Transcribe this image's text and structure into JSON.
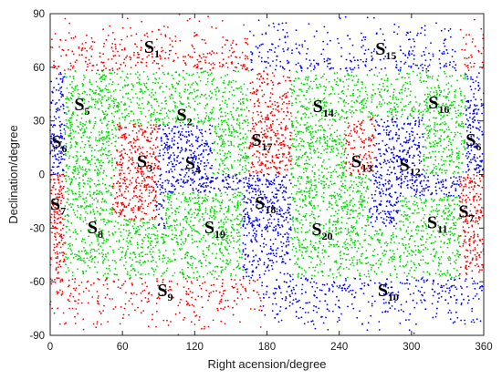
{
  "chart_data": {
    "type": "scatter",
    "title": "",
    "xlabel": "Right acension/degree",
    "ylabel": "Declination/degree",
    "xlim": [
      0,
      360
    ],
    "ylim": [
      -90,
      90
    ],
    "xticks": [
      0,
      60,
      120,
      180,
      240,
      300,
      360
    ],
    "yticks": [
      -90,
      -60,
      -30,
      0,
      30,
      60,
      90
    ],
    "grid": false,
    "colors": {
      "red": "#ff0000",
      "green": "#00dd00",
      "blue": "#0000ff"
    },
    "point_count": 9000,
    "regions": [
      {
        "name": "S",
        "sub": "1",
        "x": 78,
        "y": 68,
        "color": "red"
      },
      {
        "name": "S",
        "sub": "2",
        "x": 105,
        "y": 30,
        "color": "green"
      },
      {
        "name": "S",
        "sub": "3",
        "x": 72,
        "y": 4,
        "color": "red"
      },
      {
        "name": "S",
        "sub": "4",
        "x": 112,
        "y": 3,
        "color": "blue"
      },
      {
        "name": "S",
        "sub": "5",
        "x": 20,
        "y": 36,
        "color": "green"
      },
      {
        "name": "S",
        "sub": "6",
        "x": 1,
        "y": 15,
        "color": "blue"
      },
      {
        "name": "S",
        "sub": "6",
        "x": 358,
        "y": 16,
        "color": "blue"
      },
      {
        "name": "S",
        "sub": "7",
        "x": 0,
        "y": -20,
        "color": "red"
      },
      {
        "name": "S",
        "sub": "7",
        "x": 352,
        "y": -24,
        "color": "red"
      },
      {
        "name": "S",
        "sub": "8",
        "x": 31,
        "y": -33,
        "color": "green"
      },
      {
        "name": "S",
        "sub": "9",
        "x": 89,
        "y": -68,
        "color": "red"
      },
      {
        "name": "S",
        "sub": "10",
        "x": 272,
        "y": -68,
        "color": "blue"
      },
      {
        "name": "S",
        "sub": "11",
        "x": 313,
        "y": -30,
        "color": "green"
      },
      {
        "name": "S",
        "sub": "12",
        "x": 290,
        "y": 2,
        "color": "blue"
      },
      {
        "name": "S",
        "sub": "13",
        "x": 250,
        "y": 4,
        "color": "red"
      },
      {
        "name": "S",
        "sub": "14",
        "x": 218,
        "y": 35,
        "color": "green"
      },
      {
        "name": "S",
        "sub": "15",
        "x": 270,
        "y": 67,
        "color": "blue"
      },
      {
        "name": "S",
        "sub": "16",
        "x": 314,
        "y": 37,
        "color": "green"
      },
      {
        "name": "S",
        "sub": "17",
        "x": 167,
        "y": 16,
        "color": "red"
      },
      {
        "name": "S",
        "sub": "18",
        "x": 170,
        "y": -19,
        "color": "blue"
      },
      {
        "name": "S",
        "sub": "19",
        "x": 128,
        "y": -33,
        "color": "green"
      },
      {
        "name": "S",
        "sub": "20",
        "x": 217,
        "y": -34,
        "color": "green"
      }
    ]
  }
}
